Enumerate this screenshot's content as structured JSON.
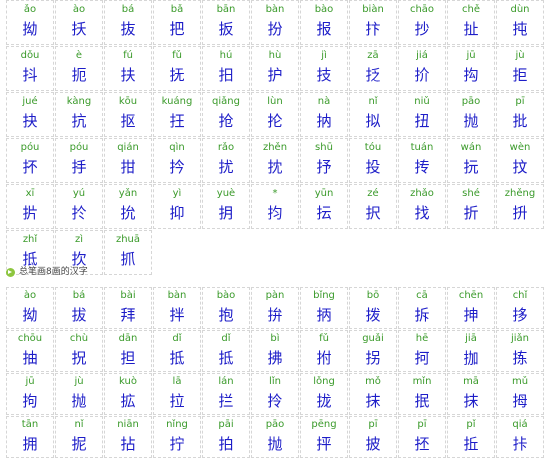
{
  "section1": {
    "items": [
      {
        "py": "ǎo",
        "hz": "拗"
      },
      {
        "py": "ào",
        "hz": "扷"
      },
      {
        "py": "bá",
        "hz": "抜"
      },
      {
        "py": "bǎ",
        "hz": "把"
      },
      {
        "py": "bān",
        "hz": "扳"
      },
      {
        "py": "bàn",
        "hz": "扮"
      },
      {
        "py": "bào",
        "hz": "报"
      },
      {
        "py": "biàn",
        "hz": "抃"
      },
      {
        "py": "chāo",
        "hz": "抄"
      },
      {
        "py": "chě",
        "hz": "扯"
      },
      {
        "py": "dùn",
        "hz": "扽"
      },
      {
        "py": "dǒu",
        "hz": "抖"
      },
      {
        "py": "è",
        "hz": "扼"
      },
      {
        "py": "fú",
        "hz": "扶"
      },
      {
        "py": "fǔ",
        "hz": "抚"
      },
      {
        "py": "hú",
        "hz": "抇"
      },
      {
        "py": "hù",
        "hz": "护"
      },
      {
        "py": "jì",
        "hz": "技"
      },
      {
        "py": "zā",
        "hz": "抸"
      },
      {
        "py": "jiá",
        "hz": "扴"
      },
      {
        "py": "jū",
        "hz": "抅"
      },
      {
        "py": "jù",
        "hz": "拒"
      },
      {
        "py": "jué",
        "hz": "抉"
      },
      {
        "py": "kàng",
        "hz": "抗"
      },
      {
        "py": "kōu",
        "hz": "抠"
      },
      {
        "py": "kuáng",
        "hz": "抂"
      },
      {
        "py": "qiǎng",
        "hz": "抢"
      },
      {
        "py": "lùn",
        "hz": "抡"
      },
      {
        "py": "nà",
        "hz": "抐"
      },
      {
        "py": "nǐ",
        "hz": "拟"
      },
      {
        "py": "niǔ",
        "hz": "扭"
      },
      {
        "py": "pāo",
        "hz": "抛"
      },
      {
        "py": "pī",
        "hz": "批"
      },
      {
        "py": "póu",
        "hz": "抔"
      },
      {
        "py": "póu",
        "hz": "抙"
      },
      {
        "py": "qián",
        "hz": "拑"
      },
      {
        "py": "qìn",
        "hz": "扲"
      },
      {
        "py": "rǎo",
        "hz": "扰"
      },
      {
        "py": "zhěn",
        "hz": "抌"
      },
      {
        "py": "shū",
        "hz": "抒"
      },
      {
        "py": "tóu",
        "hz": "投"
      },
      {
        "py": "tuán",
        "hz": "抟"
      },
      {
        "py": "wán",
        "hz": "抏"
      },
      {
        "py": "wèn",
        "hz": "抆"
      },
      {
        "py": "xī",
        "hz": "扸"
      },
      {
        "py": "yú",
        "hz": "扵"
      },
      {
        "py": "yǎn",
        "hz": "抁"
      },
      {
        "py": "yì",
        "hz": "抑"
      },
      {
        "py": "yuè",
        "hz": "抈"
      },
      {
        "py": "*",
        "hz": "抣"
      },
      {
        "py": "yūn",
        "hz": "抎"
      },
      {
        "py": "zé",
        "hz": "択"
      },
      {
        "py": "zhǎo",
        "hz": "找"
      },
      {
        "py": "shé",
        "hz": "折"
      },
      {
        "py": "zhěng",
        "hz": "抍"
      },
      {
        "py": "zhǐ",
        "hz": "抵"
      },
      {
        "py": "zì",
        "hz": "扻"
      },
      {
        "py": "zhuā",
        "hz": "抓"
      }
    ]
  },
  "section2": {
    "title": "总笔画8画的汉字",
    "items": [
      {
        "py": "ào",
        "hz": "拗"
      },
      {
        "py": "bá",
        "hz": "拔"
      },
      {
        "py": "bài",
        "hz": "拜"
      },
      {
        "py": "bàn",
        "hz": "拌"
      },
      {
        "py": "bào",
        "hz": "抱"
      },
      {
        "py": "pàn",
        "hz": "拚"
      },
      {
        "py": "bǐng",
        "hz": "抦"
      },
      {
        "py": "bō",
        "hz": "拨"
      },
      {
        "py": "cā",
        "hz": "拆"
      },
      {
        "py": "chēn",
        "hz": "抻"
      },
      {
        "py": "chǐ",
        "hz": "拸"
      },
      {
        "py": "chōu",
        "hz": "抽"
      },
      {
        "py": "chù",
        "hz": "拀"
      },
      {
        "py": "dān",
        "hz": "担"
      },
      {
        "py": "dǐ",
        "hz": "抵"
      },
      {
        "py": "dǐ",
        "hz": "抵"
      },
      {
        "py": "bì",
        "hz": "拂"
      },
      {
        "py": "fǔ",
        "hz": "拊"
      },
      {
        "py": "guǎi",
        "hz": "拐"
      },
      {
        "py": "hē",
        "hz": "抲"
      },
      {
        "py": "jiā",
        "hz": "拁"
      },
      {
        "py": "jiǎn",
        "hz": "拣"
      },
      {
        "py": "jū",
        "hz": "拘"
      },
      {
        "py": "jù",
        "hz": "抛"
      },
      {
        "py": "kuò",
        "hz": "拡"
      },
      {
        "py": "lā",
        "hz": "拉"
      },
      {
        "py": "lán",
        "hz": "拦"
      },
      {
        "py": "lǐn",
        "hz": "拎"
      },
      {
        "py": "lǒng",
        "hz": "拢"
      },
      {
        "py": "mǒ",
        "hz": "抹"
      },
      {
        "py": "mǐn",
        "hz": "抿"
      },
      {
        "py": "mā",
        "hz": "抹"
      },
      {
        "py": "mǔ",
        "hz": "拇"
      },
      {
        "py": "tān",
        "hz": "拥"
      },
      {
        "py": "nǐ",
        "hz": "抳"
      },
      {
        "py": "niān",
        "hz": "拈"
      },
      {
        "py": "nǐng",
        "hz": "拧"
      },
      {
        "py": "pāi",
        "hz": "拍"
      },
      {
        "py": "pāo",
        "hz": "抛"
      },
      {
        "py": "pēng",
        "hz": "抨"
      },
      {
        "py": "pī",
        "hz": "披"
      },
      {
        "py": "pī",
        "hz": "抷"
      },
      {
        "py": "pǐ",
        "hz": "拞"
      },
      {
        "py": "qiá",
        "hz": "拤"
      }
    ]
  }
}
